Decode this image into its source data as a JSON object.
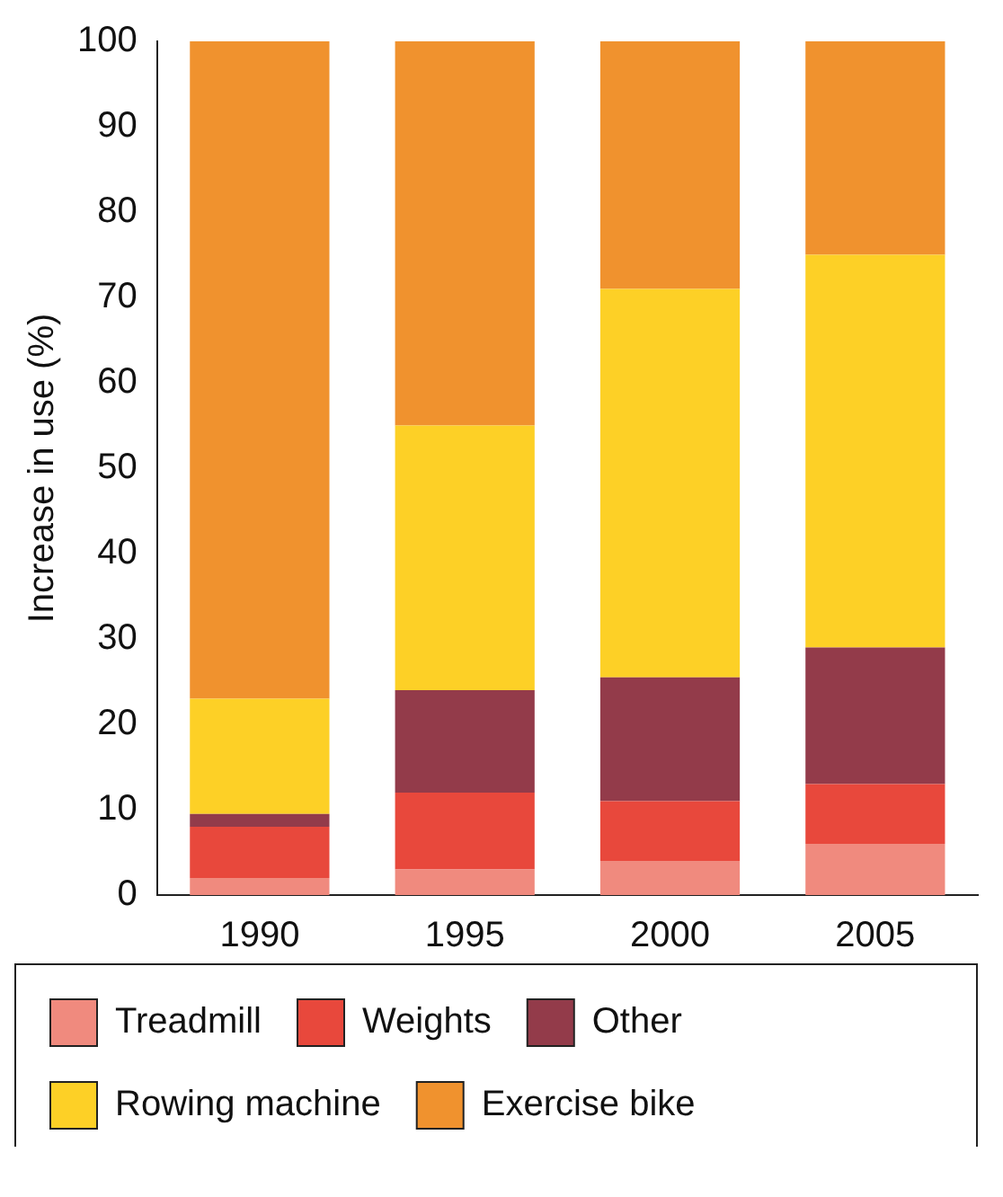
{
  "chart_data": {
    "type": "bar",
    "stacked": true,
    "ylabel": "Increase in use (%)",
    "categories": [
      "1990",
      "1995",
      "2000",
      "2005"
    ],
    "ylim": [
      0,
      100
    ],
    "yticks": [
      0,
      10,
      20,
      30,
      40,
      50,
      60,
      70,
      80,
      90,
      100
    ],
    "grid": false,
    "legend": "bottom",
    "series": [
      {
        "name": "Treadmill",
        "color": "#f08a7e",
        "values": [
          2,
          3,
          4,
          6
        ]
      },
      {
        "name": "Weights",
        "color": "#e8483c",
        "values": [
          6,
          9,
          7,
          7
        ]
      },
      {
        "name": "Other",
        "color": "#933b4a",
        "values": [
          1.5,
          12,
          14.5,
          16
        ]
      },
      {
        "name": "Rowing machine",
        "color": "#fdd026",
        "values": [
          13.5,
          31,
          45.5,
          46
        ]
      },
      {
        "name": "Exercise bike",
        "color": "#f0922e",
        "values": [
          77,
          45,
          29,
          25
        ]
      }
    ]
  }
}
